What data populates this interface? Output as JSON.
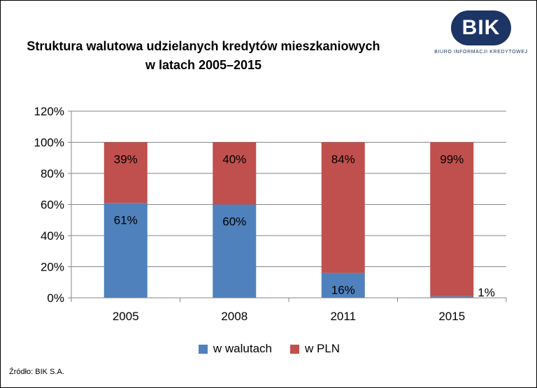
{
  "logo": {
    "letters": "BIK",
    "subtitle": "BIURO INFORMACJI KREDYTOWEJ"
  },
  "source": "Źródło: BIK S.A.",
  "colors": {
    "walutach": "#4f81bd",
    "pln": "#c0504d",
    "logo": "#1c3564"
  },
  "chart_data": {
    "type": "bar",
    "stacked": true,
    "title_lines": [
      "Struktura walutowa udzielanych kredytów mieszkaniowych",
      "w latach 2005–2015"
    ],
    "categories": [
      "2005",
      "2008",
      "2011",
      "2015"
    ],
    "series": [
      {
        "name": "w walutach",
        "values": [
          61,
          60,
          16,
          1
        ],
        "labels": [
          "61%",
          "60%",
          "16%",
          "1%"
        ]
      },
      {
        "name": "w PLN",
        "values": [
          39,
          40,
          84,
          99
        ],
        "labels": [
          "39%",
          "40%",
          "84%",
          "99%"
        ]
      }
    ],
    "yticks": [
      "0%",
      "20%",
      "40%",
      "60%",
      "80%",
      "100%",
      "120%"
    ],
    "ylim": [
      0,
      120
    ],
    "grid": true,
    "legend_position": "bottom"
  }
}
